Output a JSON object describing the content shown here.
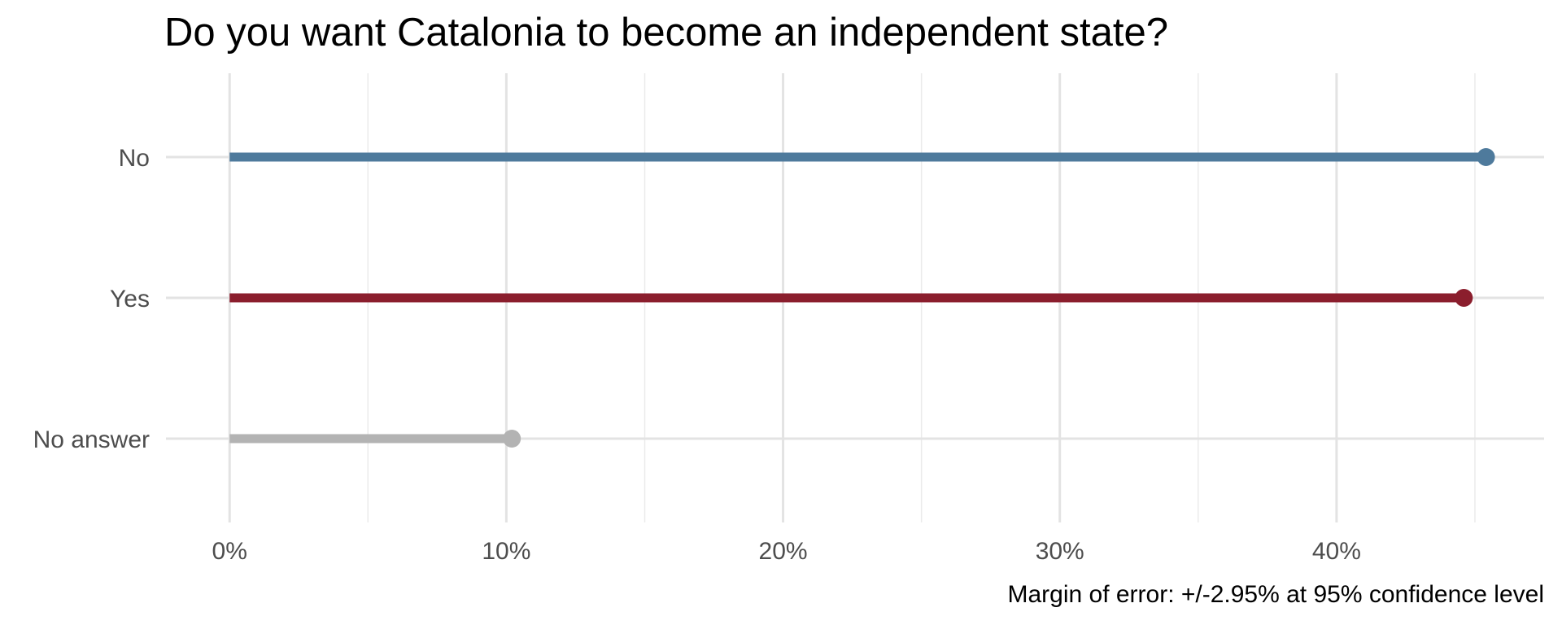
{
  "chart_data": {
    "type": "bar",
    "orientation": "horizontal",
    "style": "lollipop",
    "title": "Do you want Catalonia to become an independent state?",
    "caption": "Margin of error: +/-2.95% at 95% confidence level",
    "xlabel": "",
    "ylabel": "",
    "categories": [
      "No",
      "Yes",
      "No answer"
    ],
    "values": [
      45.4,
      44.6,
      10.2
    ],
    "colors": [
      "#4e7a9c",
      "#8b1e2d",
      "#b3b3b3"
    ],
    "xlim": [
      -2.3,
      47.5
    ],
    "x_ticks": [
      0,
      10,
      20,
      30,
      40
    ],
    "x_tick_labels": [
      "0%",
      "10%",
      "20%",
      "30%",
      "40%"
    ],
    "x_minor_ticks": [
      5,
      15,
      25,
      35,
      45
    ],
    "grid": true,
    "legend": "none"
  }
}
